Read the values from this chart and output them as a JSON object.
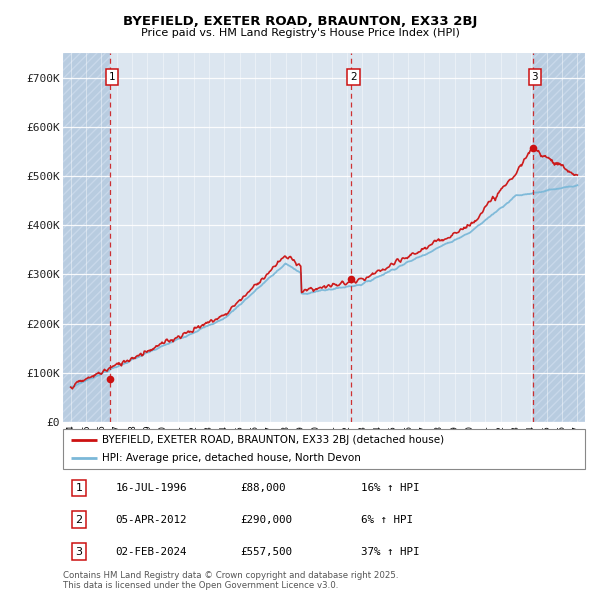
{
  "title_line1": "BYEFIELD, EXETER ROAD, BRAUNTON, EX33 2BJ",
  "title_line2": "Price paid vs. HM Land Registry's House Price Index (HPI)",
  "ylim": [
    0,
    750000
  ],
  "yticks": [
    0,
    100000,
    200000,
    300000,
    400000,
    500000,
    600000,
    700000
  ],
  "ytick_labels": [
    "£0",
    "£100K",
    "£200K",
    "£300K",
    "£400K",
    "£500K",
    "£600K",
    "£700K"
  ],
  "xlim_start": 1993.5,
  "xlim_end": 2027.5,
  "sale_dates": [
    1996.54,
    2012.26,
    2024.09
  ],
  "sale_prices": [
    88000,
    290000,
    557500
  ],
  "sale_labels": [
    "1",
    "2",
    "3"
  ],
  "hpi_color": "#7bb8d8",
  "price_color": "#cc1111",
  "dashed_color": "#cc1111",
  "legend_line1": "BYEFIELD, EXETER ROAD, BRAUNTON, EX33 2BJ (detached house)",
  "legend_line2": "HPI: Average price, detached house, North Devon",
  "table_rows": [
    [
      "1",
      "16-JUL-1996",
      "£88,000",
      "16% ↑ HPI"
    ],
    [
      "2",
      "05-APR-2012",
      "£290,000",
      "6% ↑ HPI"
    ],
    [
      "3",
      "02-FEB-2024",
      "£557,500",
      "37% ↑ HPI"
    ]
  ],
  "footnote": "Contains HM Land Registry data © Crown copyright and database right 2025.\nThis data is licensed under the Open Government Licence v3.0.",
  "background_color": "#ffffff",
  "plot_bg_color": "#dce6f0"
}
